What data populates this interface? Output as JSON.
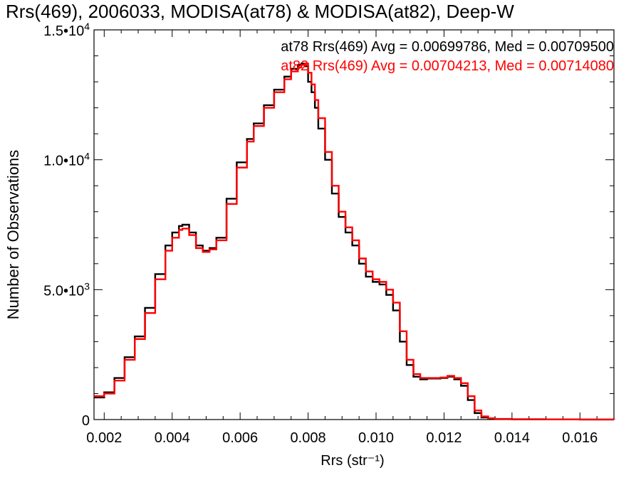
{
  "chart_data": {
    "type": "line",
    "title": "Rrs(469), 2006033, MODISA(at78) & MODISA(at82), Deep-W",
    "xlabel": "Rrs (str⁻¹)",
    "ylabel": "Number of Observations",
    "xlim": [
      0.0017,
      0.017
    ],
    "ylim": [
      0,
      15000
    ],
    "x_ticks": [
      {
        "value": 0.002,
        "label": "0.002"
      },
      {
        "value": 0.004,
        "label": "0.004"
      },
      {
        "value": 0.006,
        "label": "0.006"
      },
      {
        "value": 0.008,
        "label": "0.008"
      },
      {
        "value": 0.01,
        "label": "0.010"
      },
      {
        "value": 0.012,
        "label": "0.012"
      },
      {
        "value": 0.014,
        "label": "0.014"
      },
      {
        "value": 0.016,
        "label": "0.016"
      }
    ],
    "y_ticks": [
      {
        "value": 0,
        "mantissa": "0",
        "exponent": ""
      },
      {
        "value": 5000,
        "mantissa": "5.0•10",
        "exponent": "3"
      },
      {
        "value": 10000,
        "mantissa": "1.0•10",
        "exponent": "4"
      },
      {
        "value": 15000,
        "mantissa": "1.5•10",
        "exponent": "4"
      }
    ],
    "annotations": [
      {
        "text": "at78 Rrs(469) Avg = 0.00699786, Med = 0.00709500",
        "color": "#000000"
      },
      {
        "text": "at82 Rrs(469) Avg = 0.00704213, Med = 0.00714080",
        "color": "#ff0000"
      }
    ],
    "series": [
      {
        "color": "#000000",
        "style": "step",
        "x": [
          0.0017,
          0.002,
          0.0023,
          0.0026,
          0.0029,
          0.0032,
          0.0035,
          0.0038,
          0.004,
          0.0042,
          0.0043,
          0.0045,
          0.0047,
          0.0049,
          0.0051,
          0.0053,
          0.0056,
          0.0059,
          0.0062,
          0.0064,
          0.0067,
          0.007,
          0.0073,
          0.0075,
          0.0077,
          0.0078,
          0.0079,
          0.008,
          0.0081,
          0.0082,
          0.0083,
          0.0085,
          0.0087,
          0.0089,
          0.0091,
          0.0093,
          0.0095,
          0.0097,
          0.0099,
          0.0101,
          0.0103,
          0.0105,
          0.0107,
          0.0109,
          0.0111,
          0.0113,
          0.0115,
          0.0117,
          0.0119,
          0.0121,
          0.0123,
          0.0125,
          0.0127,
          0.0129,
          0.0131,
          0.0133,
          0.0135,
          0.014,
          0.015,
          0.016,
          0.017
        ],
        "y": [
          850,
          1050,
          1600,
          2400,
          3200,
          4300,
          5600,
          6700,
          7200,
          7450,
          7500,
          7200,
          6700,
          6500,
          6600,
          7000,
          8500,
          9900,
          10800,
          11400,
          12100,
          12700,
          13200,
          13500,
          13650,
          13700,
          13600,
          13000,
          12600,
          12000,
          11200,
          10000,
          8700,
          7800,
          7200,
          6700,
          6000,
          5500,
          5300,
          5200,
          4800,
          4200,
          3000,
          2100,
          1650,
          1550,
          1580,
          1580,
          1600,
          1650,
          1550,
          1300,
          750,
          250,
          80,
          40,
          20,
          10,
          5,
          2,
          0
        ]
      },
      {
        "color": "#ff0000",
        "style": "step",
        "x": [
          0.0017,
          0.002,
          0.0023,
          0.0026,
          0.0029,
          0.0032,
          0.0035,
          0.0038,
          0.004,
          0.0042,
          0.0043,
          0.0045,
          0.0047,
          0.0049,
          0.0051,
          0.0053,
          0.0056,
          0.0059,
          0.0062,
          0.0064,
          0.0067,
          0.007,
          0.0073,
          0.0075,
          0.0077,
          0.0078,
          0.0079,
          0.008,
          0.0081,
          0.0082,
          0.0083,
          0.0085,
          0.0087,
          0.0089,
          0.0091,
          0.0093,
          0.0095,
          0.0097,
          0.0099,
          0.0101,
          0.0103,
          0.0105,
          0.0107,
          0.0109,
          0.0111,
          0.0113,
          0.0115,
          0.0117,
          0.0119,
          0.0121,
          0.0123,
          0.0125,
          0.0127,
          0.0129,
          0.0131,
          0.0133,
          0.0135,
          0.014,
          0.015,
          0.016,
          0.017
        ],
        "y": [
          900,
          1000,
          1500,
          2300,
          3100,
          4100,
          5400,
          6500,
          7000,
          7300,
          7350,
          7100,
          6600,
          6450,
          6550,
          6900,
          8300,
          9700,
          10700,
          11300,
          12000,
          12600,
          13100,
          13400,
          13550,
          13650,
          13700,
          13350,
          12900,
          12300,
          11600,
          10300,
          9000,
          8000,
          7400,
          6900,
          6200,
          5700,
          5400,
          5300,
          5000,
          4500,
          3400,
          2300,
          1750,
          1600,
          1600,
          1600,
          1620,
          1680,
          1600,
          1400,
          900,
          350,
          120,
          50,
          25,
          12,
          6,
          2,
          0
        ]
      }
    ]
  }
}
